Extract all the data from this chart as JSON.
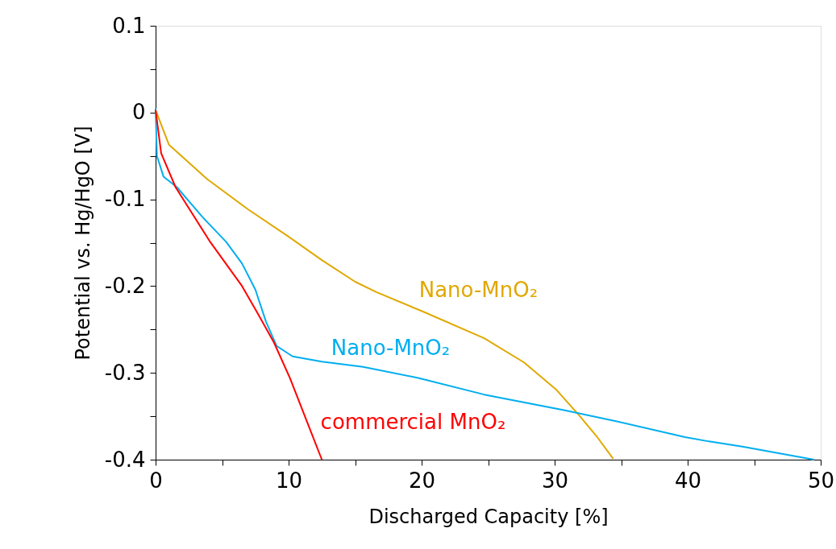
{
  "chart_data": {
    "type": "line",
    "xlabel": "Discharged Capacity [%]",
    "ylabel": "Potential vs. Hg/HgO [V]",
    "xlim": [
      0,
      50
    ],
    "ylim": [
      -0.4,
      0.1
    ],
    "xticks": [
      0,
      {
        "value": 5,
        "label": null
      },
      10,
      {
        "value": 15,
        "label": null
      },
      20,
      {
        "value": 25,
        "label": null
      },
      30,
      {
        "value": 35,
        "label": null
      },
      40,
      {
        "value": 45,
        "label": null
      },
      50
    ],
    "yticks": [
      {
        "value": -0.4,
        "label": "-0.4"
      },
      {
        "value": -0.35,
        "label": null
      },
      {
        "value": -0.3,
        "label": "-0.3"
      },
      {
        "value": -0.25,
        "label": null
      },
      {
        "value": -0.2,
        "label": "-0.2"
      },
      {
        "value": -0.15,
        "label": null
      },
      {
        "value": -0.1,
        "label": "-0.1"
      },
      {
        "value": -0.05,
        "label": null
      },
      {
        "value": 0,
        "label": "0"
      },
      {
        "value": 0.05,
        "label": null
      },
      {
        "value": 0.1,
        "label": "0.1"
      }
    ],
    "grid": false,
    "marker": "none",
    "line_style": "solid",
    "series": [
      {
        "name": "Nano-MnO₂",
        "color": "#e0a800",
        "x": [
          0,
          1.0,
          3.9,
          6.9,
          9.9,
          12.5,
          15,
          16.6,
          20.2,
          24.7,
          27.7,
          30.1,
          31.9,
          33.2,
          34.4
        ],
        "values": [
          0.003,
          -0.037,
          -0.077,
          -0.111,
          -0.142,
          -0.17,
          -0.195,
          -0.207,
          -0.23,
          -0.26,
          -0.288,
          -0.319,
          -0.35,
          -0.374,
          -0.399
        ]
      },
      {
        "name": "Nano-MnO₂",
        "color": "#00aeef",
        "x": [
          0,
          0.1,
          0.6,
          1.6,
          3.5,
          5.3,
          6.5,
          7.5,
          8.3,
          9.1,
          10.3,
          12.5,
          15.6,
          19.8,
          24.7,
          30.7,
          34.4,
          39.8,
          41.6,
          44.1,
          49.5
        ],
        "values": [
          0.005,
          -0.05,
          -0.074,
          -0.086,
          -0.12,
          -0.149,
          -0.174,
          -0.204,
          -0.241,
          -0.269,
          -0.281,
          -0.287,
          -0.293,
          -0.306,
          -0.325,
          -0.343,
          -0.355,
          -0.374,
          -0.379,
          -0.385,
          -0.4
        ]
      },
      {
        "name": "commercial MnO₂",
        "color": "#ff0000",
        "x": [
          0,
          0.42,
          1.5,
          4.1,
          6.5,
          7.7,
          8.9,
          10.1,
          11.3,
          12.5
        ],
        "values": [
          0.003,
          -0.047,
          -0.086,
          -0.149,
          -0.2,
          -0.232,
          -0.265,
          -0.306,
          -0.353,
          -0.4
        ]
      }
    ]
  }
}
